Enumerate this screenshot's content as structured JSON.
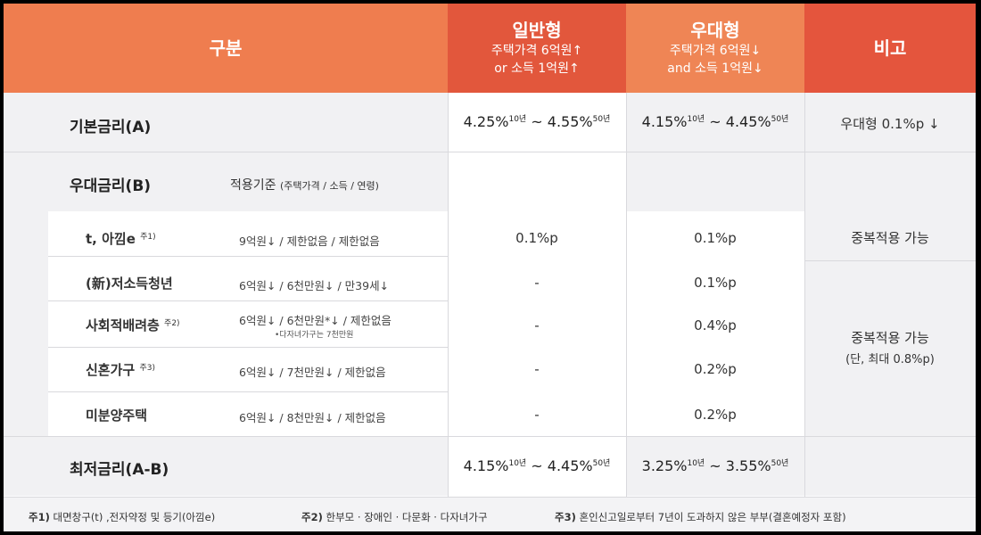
{
  "header": {
    "category": "구분",
    "general": {
      "title": "일반형",
      "line1": "주택가격 6억원↑",
      "line2": "or 소득 1억원↑"
    },
    "preferred": {
      "title": "우대형",
      "line1": "주택가격 6억원↓",
      "line2": "and 소득 1억원↓"
    },
    "note": "비고"
  },
  "base_rate": {
    "label": "기본금리(A)",
    "general": {
      "low": "4.25%",
      "low_term": "10년",
      "sep": " ~ ",
      "high": "4.55%",
      "high_term": "50년"
    },
    "preferred": {
      "low": "4.15%",
      "low_term": "10년",
      "sep": " ~ ",
      "high": "4.45%",
      "high_term": "50년"
    },
    "note": "우대형 0.1%p ↓"
  },
  "pref_rate": {
    "label": "우대금리(B)",
    "criteria_label": "적용기준",
    "criteria_detail": "(주택가격 / 소득 / 연령)",
    "items": [
      {
        "name": "t, 아낌e",
        "mark": "주1)",
        "criteria": "9억원↓ / 제한없음 / 제한없음",
        "general": "0.1%p",
        "preferred": "0.1%p"
      },
      {
        "name": "(新)저소득청년",
        "mark": "",
        "criteria": "6억원↓ / 6천만원↓ / 만39세↓",
        "general": "-",
        "preferred": "0.1%p"
      },
      {
        "name": "사회적배려층",
        "mark": "주2)",
        "criteria": "6억원↓ / 6천만원*↓ / 제한없음",
        "sub": "•다자녀가구는 7천만원",
        "general": "-",
        "preferred": "0.4%p"
      },
      {
        "name": "신혼가구",
        "mark": "주3)",
        "criteria": "6억원↓ / 7천만원↓ / 제한없음",
        "general": "-",
        "preferred": "0.2%p"
      },
      {
        "name": "미분양주택",
        "mark": "",
        "criteria": "6억원↓ / 8천만원↓ / 제한없음",
        "general": "-",
        "preferred": "0.2%p"
      }
    ],
    "note1": "중복적용 가능",
    "note2": "중복적용 가능",
    "note2_sub": "(단, 최대 0.8%p)"
  },
  "min_rate": {
    "label": "최저금리(A-B)",
    "general": {
      "low": "4.15%",
      "low_term": "10년",
      "sep": " ~ ",
      "high": "4.45%",
      "high_term": "50년"
    },
    "preferred": {
      "low": "3.25%",
      "low_term": "10년",
      "sep": " ~ ",
      "high": "3.55%",
      "high_term": "50년"
    }
  },
  "footnotes": [
    {
      "mark": "주1)",
      "text": " 대면창구(t) ,전자약정 및 등기(아낌e)"
    },
    {
      "mark": "주2)",
      "text": " 한부모 · 장애인 · 다문화 · 다자녀가구"
    },
    {
      "mark": "주3)",
      "text": " 혼인신고일로부터 7년이 도과하지 않은 부부(결혼예정자 포함)"
    }
  ]
}
